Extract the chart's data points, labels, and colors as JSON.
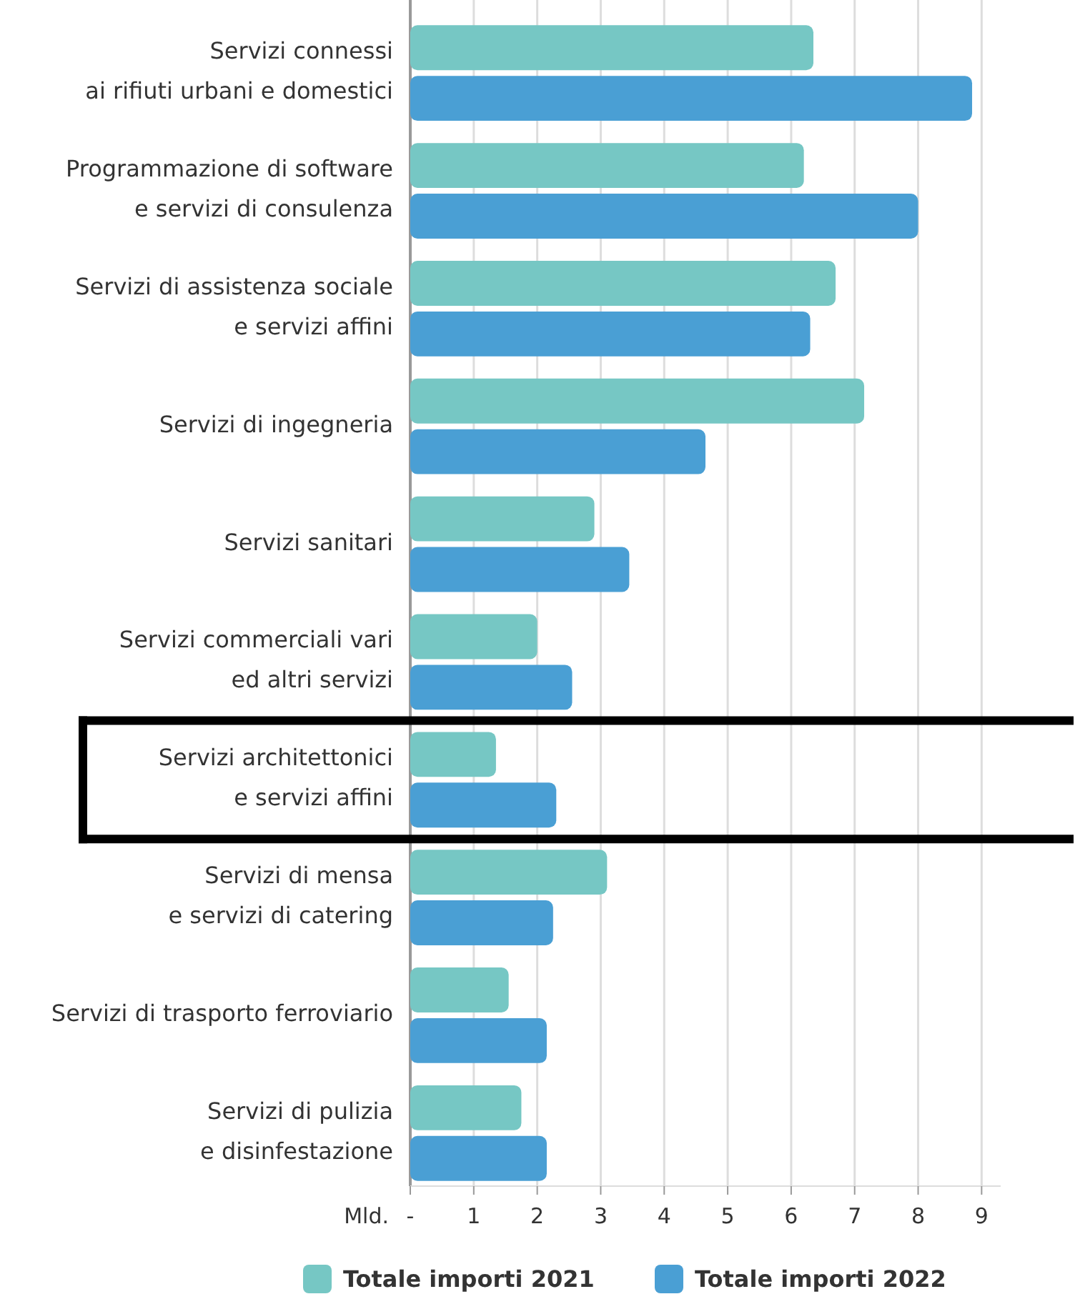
{
  "chart_data": {
    "type": "bar",
    "orientation": "horizontal",
    "categories": [
      "Servizi connessi\nai rifiuti urbani e domestici",
      "Programmazione di software\ne servizi di consulenza",
      "Servizi di assistenza sociale\ne servizi affini",
      "Servizi di ingegneria",
      "Servizi sanitari",
      "Servizi commerciali vari\ned altri servizi",
      "Servizi architettonici\ne servizi affini",
      "Servizi di mensa\ne servizi di catering",
      "Servizi di trasporto ferroviario",
      "Servizi di pulizia\ne disinfestazione"
    ],
    "series": [
      {
        "name": "Totale importi 2021",
        "color": "#76c7c4",
        "values": [
          6.35,
          6.2,
          6.7,
          7.15,
          2.9,
          2.0,
          1.35,
          3.1,
          1.55,
          1.75
        ]
      },
      {
        "name": "Totale importi 2022",
        "color": "#4a9fd4",
        "values": [
          8.85,
          8.0,
          6.3,
          4.65,
          3.45,
          2.55,
          2.3,
          2.25,
          2.15,
          2.15
        ]
      }
    ],
    "xlabel": "Mld.",
    "xlim": [
      0,
      9.3
    ],
    "xticks": [
      {
        "value": 0,
        "label": "-"
      },
      1,
      2,
      3,
      4,
      5,
      6,
      7,
      8,
      9
    ],
    "grid": "x",
    "legend": "bottom"
  }
}
